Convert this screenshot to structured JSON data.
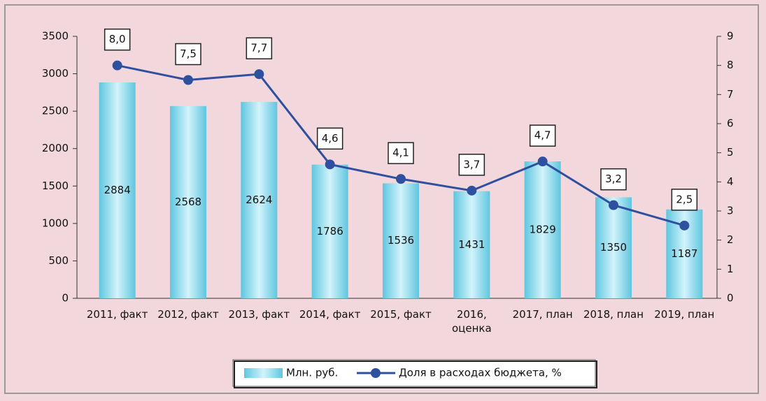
{
  "chart_data": {
    "type": "bar",
    "categories": [
      "2011, факт",
      "2012, факт",
      "2013, факт",
      "2014, факт",
      "2015, факт",
      "2016,\nоценка",
      "2017, план",
      "2018, план",
      "2019, план"
    ],
    "series": [
      {
        "name": "Млн. руб.",
        "type": "bar",
        "color": "#7fd6ea",
        "values": [
          2884,
          2568,
          2624,
          1786,
          1536,
          1431,
          1829,
          1350,
          1187
        ]
      },
      {
        "name": "Доля в расходах бюджета, %",
        "type": "line",
        "axis": "y2",
        "color": "#2f4f9f",
        "values": [
          8.0,
          7.5,
          7.7,
          4.6,
          4.1,
          3.7,
          4.7,
          3.2,
          2.5
        ],
        "value_labels": [
          "8,0",
          "7,5",
          "7,7",
          "4,6",
          "4,1",
          "3,7",
          "4,7",
          "3,2",
          "2,5"
        ]
      }
    ],
    "ylim": [
      0,
      3500
    ],
    "yticks": [
      0,
      500,
      1000,
      1500,
      2000,
      2500,
      3000,
      3500
    ],
    "y2lim": [
      0,
      9
    ],
    "y2ticks": [
      0,
      1,
      2,
      3,
      4,
      5,
      6,
      7,
      8,
      9
    ]
  }
}
